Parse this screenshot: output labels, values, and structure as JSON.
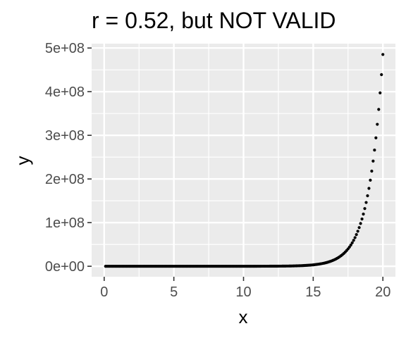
{
  "chart_data": {
    "type": "scatter",
    "title": "r = 0.52, but NOT VALID",
    "xlabel": "x",
    "ylabel": "y",
    "xlim": [
      -0.9,
      20.9
    ],
    "ylim": [
      -24000000,
      510000000
    ],
    "x_ticks": [
      0,
      5,
      10,
      15,
      20
    ],
    "y_ticks": [
      0,
      100000000,
      200000000,
      300000000,
      400000000,
      500000000
    ],
    "y_tick_labels": [
      "0e+00",
      "1e+08",
      "2e+08",
      "3e+08",
      "4e+08",
      "5e+08"
    ],
    "x_tick_labels": [
      "0",
      "5",
      "10",
      "15",
      "20"
    ],
    "grid": true,
    "legend": "none",
    "series": [
      {
        "function": "y = exp(x)",
        "x_start": 0.1,
        "x_end": 20,
        "x_step": 0.1
      }
    ],
    "colors": {
      "panel_background": "#EBEBEB",
      "grid_line": "#FFFFFF",
      "point": "#000000",
      "tick_mark": "#333333"
    }
  }
}
